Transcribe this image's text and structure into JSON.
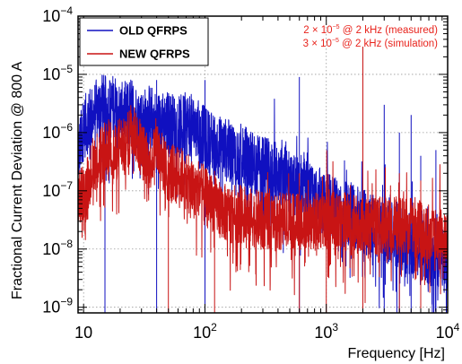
{
  "chart_data": {
    "type": "line",
    "title": "",
    "xlabel": "Frequency [Hz]",
    "ylabel": "Fractional Current Deviation @ 800 A",
    "x_scale": "log",
    "y_scale": "log",
    "xlim": [
      9,
      10000
    ],
    "ylim": [
      8e-10,
      0.0001
    ],
    "grid": true,
    "legend_position": "top-left",
    "x_ticks": [
      {
        "value": 10,
        "label": "10",
        "base": "10",
        "exp": ""
      },
      {
        "value": 100,
        "label": "10^2",
        "base": "10",
        "exp": "2"
      },
      {
        "value": 1000,
        "label": "10^3",
        "base": "10",
        "exp": "3"
      },
      {
        "value": 10000,
        "label": "10^4",
        "base": "10",
        "exp": "4"
      }
    ],
    "y_ticks": [
      {
        "value": 1e-09,
        "label": "10^-9",
        "base": "10",
        "exp": "−9"
      },
      {
        "value": 1e-08,
        "label": "10^-8",
        "base": "10",
        "exp": "−8"
      },
      {
        "value": 1e-07,
        "label": "10^-7",
        "base": "10",
        "exp": "−7"
      },
      {
        "value": 1e-06,
        "label": "10^-6",
        "base": "10",
        "exp": "−6"
      },
      {
        "value": 1e-05,
        "label": "10^-5",
        "base": "10",
        "exp": "−5"
      },
      {
        "value": 0.0001,
        "label": "10^-4",
        "base": "10",
        "exp": "−4"
      }
    ],
    "annotations": [
      {
        "pre": "2 × 10",
        "exp": "−5",
        "post": " @ 2 kHz (measured)"
      },
      {
        "pre": "3 × 10",
        "exp": "−5",
        "post": " @ 2 kHz (simulation)"
      }
    ],
    "series": [
      {
        "name": "OLD QFRPS",
        "color": "#1010c0",
        "x": [
          9,
          10,
          12,
          14,
          16,
          18,
          20,
          25,
          30,
          35,
          40,
          50,
          60,
          70,
          80,
          90,
          100,
          120,
          150,
          200,
          300,
          400,
          500,
          600,
          700,
          800,
          1000,
          1500,
          2000,
          3000,
          4000,
          5000,
          7000,
          10000
        ],
        "y": [
          4e-07,
          1.2e-06,
          2e-06,
          3e-06,
          2.5e-06,
          3e-06,
          2e-06,
          2.5e-06,
          1.5e-06,
          2e-06,
          1.5e-06,
          1.5e-06,
          1.2e-06,
          1.4e-06,
          1.3e-06,
          1e-06,
          8e-07,
          6e-07,
          5e-07,
          4e-07,
          2.5e-07,
          2e-07,
          1.5e-07,
          1.2e-07,
          1e-07,
          8e-08,
          6e-08,
          4e-08,
          3e-08,
          2e-08,
          1.5e-08,
          1.2e-08,
          8e-09,
          6e-09
        ],
        "spikes": [
          {
            "x": 15,
            "y": 6e-06
          },
          {
            "x": 40,
            "y": 8e-06
          },
          {
            "x": 100,
            "y": 8e-06
          },
          {
            "x": 600,
            "y": 9e-06
          },
          {
            "x": 2000,
            "y": 1e-05
          },
          {
            "x": 3000,
            "y": 3e-06
          },
          {
            "x": 4000,
            "y": 1e-06
          },
          {
            "x": 5000,
            "y": 2e-06
          },
          {
            "x": 6000,
            "y": 4e-07
          },
          {
            "x": 8000,
            "y": 5e-07
          }
        ]
      },
      {
        "name": "NEW QFRPS",
        "color": "#c81414",
        "x": [
          9,
          10,
          11,
          12,
          14,
          16,
          18,
          20,
          22,
          25,
          28,
          30,
          35,
          40,
          45,
          50,
          60,
          70,
          80,
          90,
          100,
          150,
          200,
          300,
          500,
          700,
          1000,
          1500,
          2000,
          3000,
          5000,
          7000,
          10000
        ],
        "y": [
          8e-08,
          1e-07,
          1.5e-07,
          3e-07,
          4e-07,
          6e-07,
          4e-07,
          7e-07,
          5e-07,
          1.3e-06,
          8e-07,
          5e-07,
          3e-07,
          6e-07,
          3e-07,
          2e-07,
          2e-07,
          1.5e-07,
          1e-07,
          1.2e-07,
          8e-08,
          4e-08,
          4e-08,
          3e-08,
          3e-08,
          3e-08,
          3e-08,
          3e-08,
          2.5e-08,
          2.5e-08,
          2.5e-08,
          2e-08,
          2e-08
        ],
        "spikes": [
          {
            "x": 50,
            "y": 6e-07
          },
          {
            "x": 120,
            "y": 2.2e-07
          },
          {
            "x": 600,
            "y": 2e-07
          },
          {
            "x": 1000,
            "y": 1.5e-07
          },
          {
            "x": 2000,
            "y": 3e-05
          },
          {
            "x": 4000,
            "y": 2e-07
          },
          {
            "x": 6000,
            "y": 1.5e-07
          }
        ]
      }
    ]
  }
}
